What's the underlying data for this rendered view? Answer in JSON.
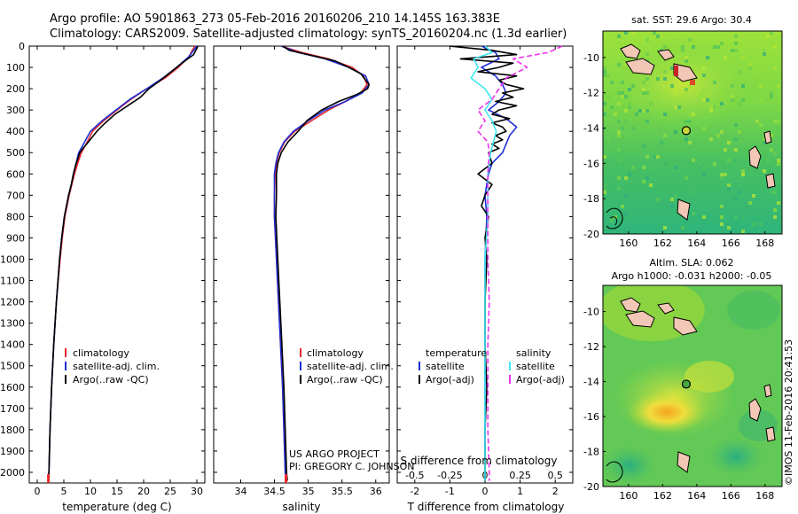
{
  "title": {
    "line1": "Argo profile: AO 5901863_273 05-Feb-2016 20160206_210 14.145S 163.383E",
    "line2": "Climatology: CARS2009. Satellite-adjusted climatology: synTS_20160204.nc (1.3d earlier)"
  },
  "colors": {
    "climatology": "#e8262a",
    "satellite": "#1f2fd6",
    "argo": "#000000",
    "sat_salinity": "#3ee8ee",
    "argo_salinity": "#ee33ee"
  },
  "depth_axis": {
    "ticks": [
      "0",
      "100",
      "200",
      "300",
      "400",
      "500",
      "600",
      "700",
      "800",
      "900",
      "1000",
      "1100",
      "1200",
      "1300",
      "1400",
      "1500",
      "1600",
      "1700",
      "1800",
      "1900",
      "2000"
    ],
    "max": 2050
  },
  "annotations": {
    "project": "US ARGO PROJECT",
    "pi": "PI: GREGORY C. JOHNSON",
    "credit": "©IMOS 11-Feb-2016 20:41:53"
  },
  "chart_data": [
    {
      "type": "line",
      "id": "temperature",
      "xlabel": "temperature (deg C)",
      "xlim": [
        -1.5,
        31.5
      ],
      "xticks": [
        "0",
        "5",
        "10",
        "15",
        "20",
        "25",
        "30"
      ],
      "ylabel": "depth",
      "ylim": [
        0,
        2050
      ],
      "legend": [
        "climatology",
        "satellite-adj. clim.",
        "Argo(..raw -QC)"
      ],
      "series": [
        {
          "name": "climatology",
          "color": "#e8262a",
          "depth": [
            0,
            50,
            100,
            150,
            200,
            250,
            300,
            350,
            400,
            450,
            500,
            550,
            600,
            650,
            700,
            800,
            900,
            1000,
            1200,
            1400,
            1600,
            1800,
            2000,
            2040
          ],
          "values": [
            29.6,
            28.5,
            26.5,
            24.0,
            20.6,
            17.6,
            15.0,
            12.5,
            10.4,
            9.4,
            8.3,
            7.6,
            7.0,
            6.5,
            6.0,
            5.2,
            4.7,
            4.3,
            3.6,
            3.1,
            2.7,
            2.4,
            2.2,
            2.1
          ]
        },
        {
          "name": "satellite-adj. clim.",
          "color": "#1f2fd6",
          "depth": [
            0,
            50,
            100,
            150,
            200,
            250,
            300,
            350,
            400,
            450,
            500,
            550,
            600,
            650,
            700,
            800,
            900,
            1000,
            1200,
            1400,
            1600,
            1800,
            2000,
            2040
          ],
          "values": [
            30.0,
            28.5,
            26.2,
            23.6,
            20.6,
            17.4,
            14.8,
            12.2,
            10.0,
            8.9,
            7.8,
            7.3,
            6.8,
            6.4,
            5.9,
            5.1,
            4.6,
            4.2,
            3.6,
            3.1,
            2.7,
            2.4,
            2.2,
            2.1
          ]
        },
        {
          "name": "Argo(..raw -QC)",
          "color": "#000000",
          "depth": [
            0,
            40,
            80,
            120,
            160,
            200,
            240,
            280,
            320,
            360,
            400,
            450,
            480,
            500,
            530,
            560,
            600,
            650,
            700,
            800,
            900,
            1000,
            1200,
            1400,
            1600,
            1800,
            2000,
            2040
          ],
          "values": [
            30.2,
            29.4,
            27.2,
            25.2,
            23.2,
            21.0,
            19.4,
            17.0,
            14.6,
            12.8,
            11.2,
            9.6,
            8.6,
            8.0,
            7.6,
            7.2,
            6.8,
            6.4,
            5.9,
            5.1,
            4.6,
            4.2,
            3.6,
            3.1,
            2.7,
            2.4,
            2.2,
            2.1
          ]
        }
      ]
    },
    {
      "type": "line",
      "id": "salinity",
      "xlabel": "salinity",
      "xlim": [
        33.6,
        36.2
      ],
      "xticks": [
        "34",
        "34.5",
        "35",
        "35.5",
        "36"
      ],
      "ylabel": "depth",
      "ylim": [
        0,
        2050
      ],
      "legend": [
        "climatology",
        "satellite-adj. clim.",
        "Argo(..raw -QC)"
      ],
      "series": [
        {
          "name": "climatology",
          "color": "#e8262a",
          "depth": [
            0,
            30,
            60,
            100,
            140,
            180,
            220,
            260,
            300,
            350,
            400,
            450,
            500,
            550,
            600,
            700,
            800,
            1000,
            1200,
            1400,
            1600,
            1800,
            2000,
            2040
          ],
          "values": [
            34.6,
            34.9,
            35.3,
            35.65,
            35.82,
            35.87,
            35.78,
            35.55,
            35.3,
            35.05,
            34.8,
            34.65,
            34.57,
            34.53,
            34.51,
            34.5,
            34.5,
            34.53,
            34.56,
            34.59,
            34.62,
            34.64,
            34.66,
            34.67
          ]
        },
        {
          "name": "satellite-adj. clim.",
          "color": "#1f2fd6",
          "depth": [
            0,
            30,
            60,
            100,
            140,
            180,
            220,
            260,
            300,
            350,
            400,
            450,
            500,
            550,
            600,
            700,
            800,
            1000,
            1200,
            1400,
            1600,
            1800,
            2000,
            2040
          ],
          "values": [
            34.6,
            34.85,
            35.25,
            35.6,
            35.85,
            35.9,
            35.8,
            35.55,
            35.25,
            35.0,
            34.78,
            34.64,
            34.56,
            34.52,
            34.5,
            34.5,
            34.5,
            34.53,
            34.56,
            34.59,
            34.62,
            34.64,
            34.66,
            34.67
          ]
        },
        {
          "name": "Argo(..raw -QC)",
          "color": "#000000",
          "depth": [
            0,
            20,
            40,
            70,
            100,
            130,
            160,
            180,
            200,
            230,
            260,
            300,
            350,
            400,
            450,
            500,
            550,
            600,
            700,
            800,
            1000,
            1200,
            1400,
            1600,
            1800,
            2000,
            2040
          ],
          "values": [
            34.62,
            34.72,
            35.0,
            35.4,
            35.6,
            35.78,
            35.85,
            35.9,
            35.88,
            35.7,
            35.45,
            35.2,
            34.98,
            34.85,
            34.7,
            34.6,
            34.55,
            34.53,
            34.53,
            34.52,
            34.55,
            34.58,
            34.61,
            34.64,
            34.66,
            34.68,
            34.69
          ]
        }
      ]
    },
    {
      "type": "line",
      "id": "difference",
      "xlabel": "T difference from climatology",
      "xlabel_top": "S difference from climatology",
      "xlim": [
        -2.5,
        2.5
      ],
      "xticks": [
        "-2",
        "-1",
        "0",
        "1",
        "2"
      ],
      "xticks_s": [
        "-0.5",
        "-0.25",
        "0",
        "0.25",
        "0.5"
      ],
      "ylabel": "depth",
      "ylim": [
        0,
        2050
      ],
      "legend_temperature": [
        "temperature",
        "satellite",
        "Argo(-adj)"
      ],
      "legend_salinity": [
        "salinity",
        "satellite",
        "Argo(-adj)"
      ],
      "series": [
        {
          "name": "temperature satellite",
          "color": "#1f2fd6",
          "depth": [
            0,
            30,
            60,
            100,
            140,
            180,
            220,
            260,
            300,
            340,
            380,
            420,
            460,
            500,
            550,
            600,
            700,
            800,
            1000,
            1200,
            1400,
            1600,
            1800,
            2000,
            2040
          ],
          "values": [
            -0.1,
            0.3,
            0.4,
            -0.1,
            0.3,
            0.5,
            0.6,
            0.4,
            0.1,
            0.6,
            0.9,
            0.7,
            0.6,
            0.5,
            0.2,
            0.1,
            0.0,
            0.05,
            0.0,
            0.0,
            0.0,
            0.0,
            0.0,
            0.0,
            0.0
          ]
        },
        {
          "name": "temperature Argo(-adj)",
          "color": "#000000",
          "depth": [
            0,
            20,
            40,
            60,
            80,
            100,
            120,
            140,
            160,
            180,
            200,
            220,
            240,
            260,
            280,
            300,
            320,
            340,
            360,
            380,
            400,
            420,
            440,
            460,
            480,
            500,
            550,
            600,
            650,
            700,
            750,
            800,
            900,
            1000,
            1200,
            1400,
            1600,
            1800,
            2000,
            2040
          ],
          "values": [
            -1.0,
            0.2,
            0.9,
            -0.7,
            0.8,
            0.4,
            -0.2,
            0.9,
            0.4,
            0.6,
            1.1,
            0.5,
            0.8,
            0.3,
            0.9,
            0.4,
            0.2,
            0.7,
            0.2,
            0.5,
            0.6,
            0.3,
            0.5,
            0.2,
            0.4,
            0.1,
            0.2,
            -0.2,
            0.2,
            0.0,
            -0.1,
            0.1,
            0.0,
            0.05,
            0.0,
            0.0,
            0.05,
            0.0,
            0.0,
            0.0
          ]
        },
        {
          "name": "salinity satellite",
          "color": "#3ee8ee",
          "depth": [
            0,
            30,
            60,
            100,
            150,
            200,
            250,
            300,
            350,
            400,
            450,
            500,
            600,
            700,
            800,
            1000,
            1200,
            1400,
            1600,
            1800,
            2000,
            2040
          ],
          "values": [
            0.0,
            0.05,
            -0.08,
            -0.05,
            -0.1,
            0.0,
            0.05,
            0.0,
            0.05,
            0.08,
            0.06,
            0.04,
            0.02,
            0.02,
            0.02,
            0.0,
            0.0,
            0.0,
            0.0,
            0.0,
            0.0,
            0.0
          ]
        },
        {
          "name": "salinity Argo(-adj)",
          "color": "#ee33ee",
          "depth": [
            0,
            30,
            60,
            100,
            150,
            200,
            250,
            300,
            350,
            400,
            450,
            500,
            600,
            700,
            800,
            1000,
            1200,
            1400,
            1600,
            1800,
            2000,
            2040
          ],
          "values": [
            0.55,
            0.45,
            0.2,
            0.3,
            0.15,
            0.1,
            0.05,
            -0.05,
            0.0,
            -0.05,
            0.02,
            0.03,
            0.02,
            0.02,
            0.02,
            0.02,
            0.03,
            0.02,
            0.02,
            0.02,
            0.03,
            0.03
          ]
        }
      ]
    },
    {
      "type": "heatmap",
      "id": "sst_map",
      "title": "sat. SST: 29.6  Argo: 30.4",
      "xticks": [
        "160",
        "162",
        "164",
        "166",
        "168"
      ],
      "yticks": [
        "-10",
        "-12",
        "-14",
        "-16",
        "-18",
        "-20"
      ],
      "xlim": [
        158.5,
        169
      ],
      "ylim": [
        -20,
        -8.5
      ],
      "argo_location": {
        "lon": 163.383,
        "lat": -14.145
      }
    },
    {
      "type": "heatmap",
      "id": "sla_map",
      "title_line1": "Altim. SLA: 0.062",
      "title_line2": "Argo h1000: -0.031  h2000: -0.05",
      "xticks": [
        "160",
        "162",
        "164",
        "166",
        "168"
      ],
      "yticks": [
        "-10",
        "-12",
        "-14",
        "-16",
        "-18",
        "-20"
      ],
      "xlim": [
        158.5,
        169
      ],
      "ylim": [
        -20,
        -8.5
      ],
      "argo_location": {
        "lon": 163.383,
        "lat": -14.145
      }
    }
  ]
}
